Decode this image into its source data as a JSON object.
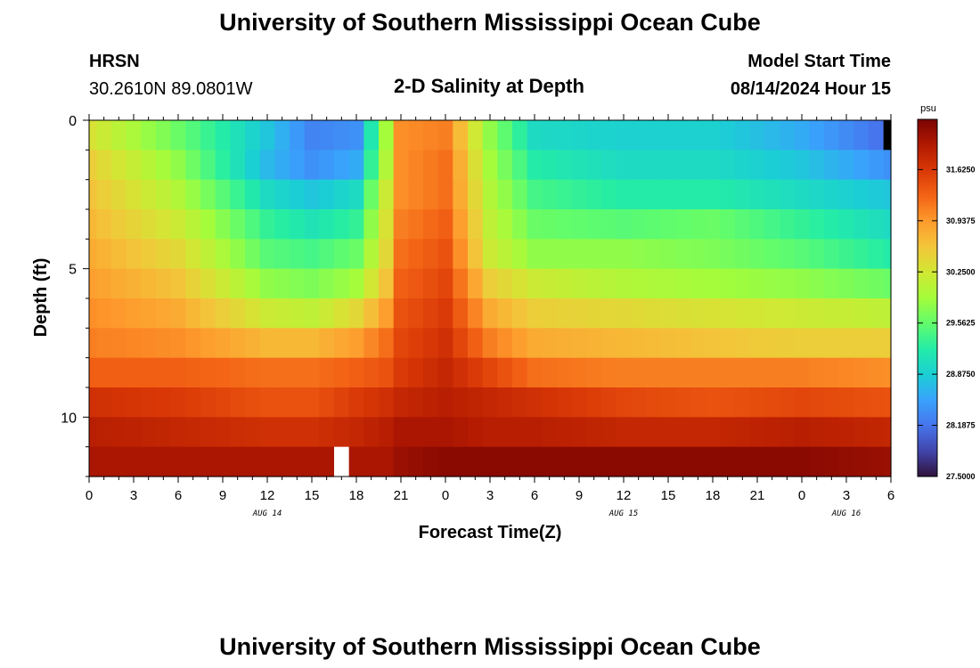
{
  "header": {
    "title": "University of Southern Mississippi Ocean Cube",
    "station": "HRSN",
    "coords": "30.2610N  89.0801W",
    "subtitle": "2-D Salinity at Depth",
    "model_label": "Model Start Time",
    "model_time": "08/14/2024 Hour 15",
    "footer_title": "University of Southern Mississippi Ocean Cube"
  },
  "colorbar": {
    "unit": "psu",
    "labels": [
      "31.6250",
      "30.9375",
      "30.2500",
      "29.5625",
      "28.8750",
      "28.1875",
      "27.5000"
    ],
    "min": 27.5,
    "max": 32.3,
    "colors": [
      "#30123b",
      "#4145ab",
      "#4675ed",
      "#39a2fc",
      "#1bcfd4",
      "#24eca6",
      "#61fc6c",
      "#a4fc3b",
      "#d1e834",
      "#f3c63a",
      "#fe9b2d",
      "#f36315",
      "#d93806",
      "#b11901",
      "#7a0403"
    ]
  },
  "chart_data": {
    "type": "heatmap",
    "title": "2-D Salinity at Depth",
    "xlabel": "Forecast Time(Z)",
    "ylabel": "Depth (ft)",
    "x_ticks": [
      "0",
      "3",
      "6",
      "9",
      "12",
      "15",
      "18",
      "21",
      "0",
      "3",
      "6",
      "9",
      "12",
      "15",
      "18",
      "21",
      "0",
      "3",
      "6"
    ],
    "x_dates": [
      {
        "label": "AUG 14",
        "at_hour": 12
      },
      {
        "label": "AUG 15",
        "at_hour": 36
      },
      {
        "label": "AUG 16",
        "at_hour": 51
      }
    ],
    "x_range_hours": [
      0,
      54
    ],
    "y_ticks": [
      "0",
      "5",
      "10"
    ],
    "y_range": [
      0,
      12
    ],
    "depth_layers_ft": [
      0.5,
      1.5,
      2.5,
      3.5,
      4.5,
      5.5,
      6.5,
      7.5,
      8.5,
      9.5,
      10.5,
      11.5
    ],
    "values_unit": "psu",
    "keyframes_hours": [
      0,
      6,
      12,
      15,
      18,
      20,
      21,
      24,
      27,
      30,
      36,
      42,
      48,
      54
    ],
    "values": [
      [
        30.3,
        29.6,
        28.8,
        28.3,
        28.4,
        29.9,
        31.0,
        31.1,
        29.8,
        29.0,
        28.9,
        28.9,
        28.6,
        28.1
      ],
      [
        30.5,
        29.8,
        28.7,
        28.4,
        28.6,
        30.0,
        31.0,
        31.2,
        29.9,
        29.2,
        29.0,
        29.0,
        28.8,
        28.4
      ],
      [
        30.6,
        30.0,
        29.0,
        28.8,
        29.0,
        30.2,
        31.0,
        31.2,
        30.0,
        29.4,
        29.2,
        29.2,
        29.0,
        28.8
      ],
      [
        30.7,
        30.2,
        29.3,
        29.1,
        29.3,
        30.3,
        31.1,
        31.3,
        30.1,
        29.6,
        29.5,
        29.6,
        29.3,
        29.0
      ],
      [
        30.8,
        30.4,
        29.5,
        29.4,
        29.6,
        30.4,
        31.2,
        31.4,
        30.2,
        29.8,
        29.8,
        29.7,
        29.5,
        29.2
      ],
      [
        30.9,
        30.6,
        29.8,
        29.7,
        29.9,
        30.6,
        31.3,
        31.5,
        30.5,
        30.2,
        30.0,
        29.9,
        29.8,
        29.6
      ],
      [
        31.0,
        30.8,
        30.2,
        30.1,
        30.4,
        30.9,
        31.4,
        31.6,
        30.8,
        30.5,
        30.4,
        30.3,
        30.2,
        30.1
      ],
      [
        31.1,
        31.0,
        30.7,
        30.7,
        30.9,
        31.2,
        31.5,
        31.7,
        31.1,
        30.8,
        30.7,
        30.6,
        30.5,
        30.5
      ],
      [
        31.3,
        31.3,
        31.2,
        31.2,
        31.3,
        31.4,
        31.6,
        31.8,
        31.5,
        31.2,
        31.1,
        31.1,
        31.1,
        31.0
      ],
      [
        31.7,
        31.6,
        31.4,
        31.4,
        31.6,
        31.7,
        31.8,
        31.9,
        31.8,
        31.7,
        31.5,
        31.4,
        31.5,
        31.4
      ],
      [
        31.9,
        31.8,
        31.7,
        31.7,
        31.8,
        31.9,
        32.0,
        32.0,
        31.9,
        31.9,
        31.8,
        31.8,
        31.9,
        31.8
      ],
      [
        32.0,
        32.0,
        32.0,
        32.0,
        32.0,
        32.0,
        32.1,
        32.2,
        32.2,
        32.2,
        32.2,
        32.2,
        32.2,
        32.1
      ]
    ],
    "missing_cells": [
      {
        "hour": 17,
        "layer": 11,
        "color": "#ffffff"
      },
      {
        "hour": 54,
        "layer": 0,
        "color": "#000000"
      }
    ]
  }
}
